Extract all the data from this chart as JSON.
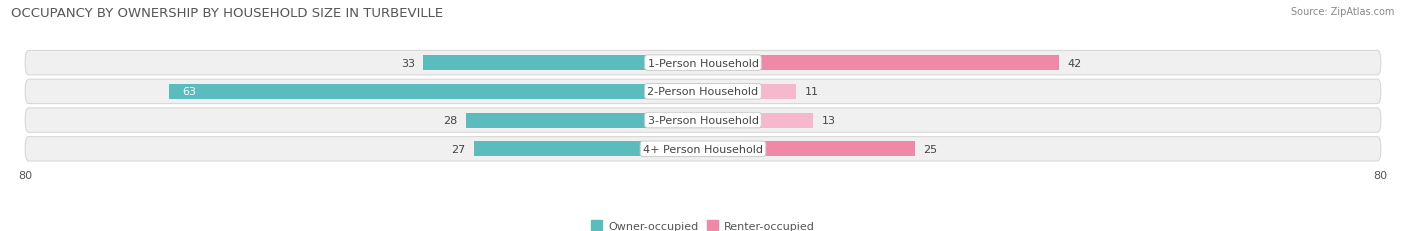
{
  "title": "OCCUPANCY BY OWNERSHIP BY HOUSEHOLD SIZE IN TURBEVILLE",
  "source": "Source: ZipAtlas.com",
  "categories": [
    "1-Person Household",
    "2-Person Household",
    "3-Person Household",
    "4+ Person Household"
  ],
  "owner_values": [
    33,
    63,
    28,
    27
  ],
  "renter_values": [
    42,
    11,
    13,
    25
  ],
  "max_val": 80,
  "owner_color": "#5bbcbd",
  "renter_color": "#f088a8",
  "renter_color_light": "#f5b8cc",
  "row_bg_color": "#f0f0f0",
  "row_border_color": "#d8d8d8",
  "title_fontsize": 9.5,
  "label_fontsize": 8.0,
  "tick_fontsize": 8.0,
  "value_fontsize": 8.0,
  "legend_label_owner": "Owner-occupied",
  "legend_label_renter": "Renter-occupied"
}
